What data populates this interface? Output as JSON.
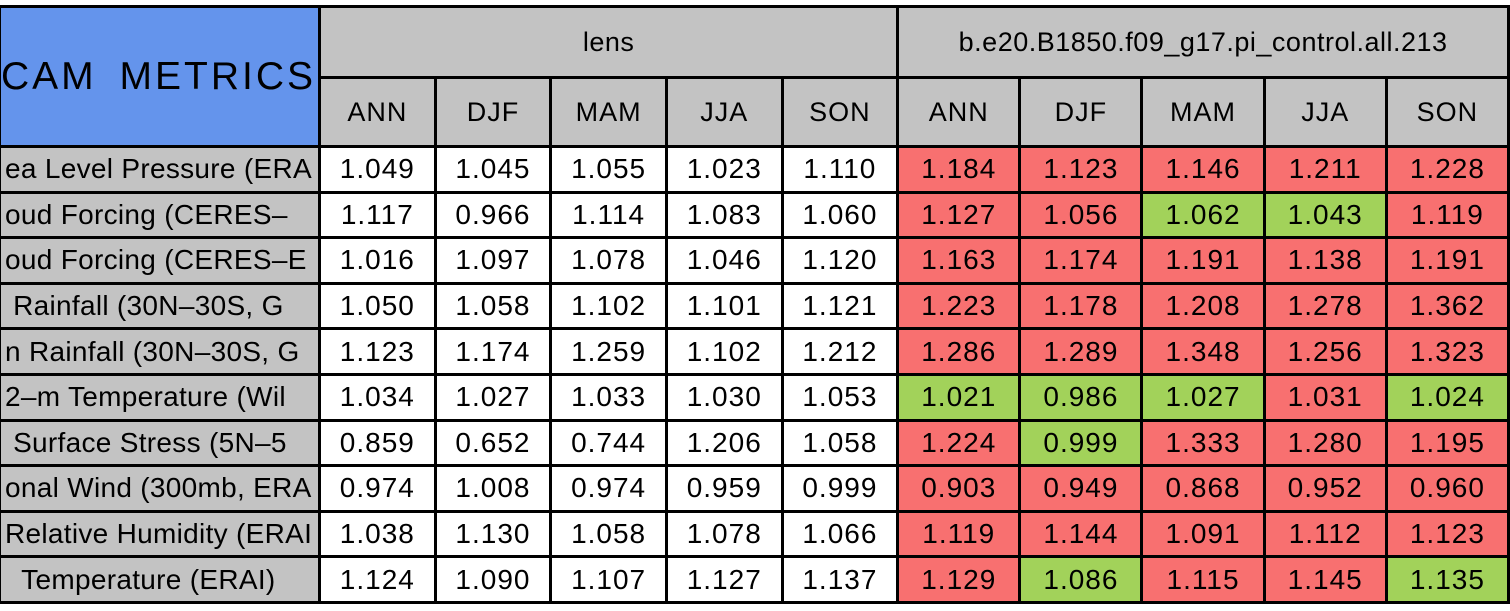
{
  "title": "CAM METRICS",
  "colors": {
    "page_bg": "#FFFFFF",
    "title_bg": "#6494EC",
    "header_bg": "#C3C3C3",
    "value_bg": "#FFFFFF",
    "worse_bg": "#F87070",
    "better_bg": "#A2D25A",
    "border": "#000000",
    "text": "#000000"
  },
  "chart_data": {
    "type": "table",
    "title": "CAM METRICS",
    "column_groups": [
      "lens",
      "b.e20.B1850.f09_g17.pi_control.all.213"
    ],
    "groups": [
      {
        "label": "lens",
        "seasons": [
          "ANN",
          "DJF",
          "MAM",
          "JJA",
          "SON"
        ]
      },
      {
        "label": "b.e20.B1850.f09_g17.pi_control.all.213",
        "seasons": [
          "ANN",
          "DJF",
          "MAM",
          "JJA",
          "SON"
        ]
      }
    ],
    "cell_color_legend": {
      "red": "#F87070",
      "green": "#A2D25A",
      "white": "#FFFFFF"
    },
    "rows": [
      {
        "label": "ea Level Pressure (ERA",
        "lens": [
          "1.049",
          "1.045",
          "1.055",
          "1.023",
          "1.110"
        ],
        "control": [
          "1.184",
          "1.123",
          "1.146",
          "1.211",
          "1.228"
        ],
        "control_colors": [
          "red",
          "red",
          "red",
          "red",
          "red"
        ]
      },
      {
        "label": "oud Forcing (CERES–",
        "lens": [
          "1.117",
          "0.966",
          "1.114",
          "1.083",
          "1.060"
        ],
        "control": [
          "1.127",
          "1.056",
          "1.062",
          "1.043",
          "1.119"
        ],
        "control_colors": [
          "red",
          "red",
          "green",
          "green",
          "red"
        ]
      },
      {
        "label": "oud Forcing (CERES–E",
        "lens": [
          "1.016",
          "1.097",
          "1.078",
          "1.046",
          "1.120"
        ],
        "control": [
          "1.163",
          "1.174",
          "1.191",
          "1.138",
          "1.191"
        ],
        "control_colors": [
          "red",
          "red",
          "red",
          "red",
          "red"
        ]
      },
      {
        "label": " Rainfall (30N–30S, G",
        "lens": [
          "1.050",
          "1.058",
          "1.102",
          "1.101",
          "1.121"
        ],
        "control": [
          "1.223",
          "1.178",
          "1.208",
          "1.278",
          "1.362"
        ],
        "control_colors": [
          "red",
          "red",
          "red",
          "red",
          "red"
        ]
      },
      {
        "label": "n Rainfall (30N–30S, G",
        "lens": [
          "1.123",
          "1.174",
          "1.259",
          "1.102",
          "1.212"
        ],
        "control": [
          "1.286",
          "1.289",
          "1.348",
          "1.256",
          "1.323"
        ],
        "control_colors": [
          "red",
          "red",
          "red",
          "red",
          "red"
        ]
      },
      {
        "label": "2–m Temperature (Wil",
        "lens": [
          "1.034",
          "1.027",
          "1.033",
          "1.030",
          "1.053"
        ],
        "control": [
          "1.021",
          "0.986",
          "1.027",
          "1.031",
          "1.024"
        ],
        "control_colors": [
          "green",
          "green",
          "green",
          "red",
          "green"
        ]
      },
      {
        "label": " Surface Stress (5N–5",
        "lens": [
          "0.859",
          "0.652",
          "0.744",
          "1.206",
          "1.058"
        ],
        "control": [
          "1.224",
          "0.999",
          "1.333",
          "1.280",
          "1.195"
        ],
        "control_colors": [
          "red",
          "green",
          "red",
          "red",
          "red"
        ]
      },
      {
        "label": "onal Wind (300mb, ERA",
        "lens": [
          "0.974",
          "1.008",
          "0.974",
          "0.959",
          "0.999"
        ],
        "control": [
          "0.903",
          "0.949",
          "0.868",
          "0.952",
          "0.960"
        ],
        "control_colors": [
          "red",
          "red",
          "red",
          "red",
          "red"
        ]
      },
      {
        "label": "Relative Humidity (ERAI",
        "lens": [
          "1.038",
          "1.130",
          "1.058",
          "1.078",
          "1.066"
        ],
        "control": [
          "1.119",
          "1.144",
          "1.091",
          "1.112",
          "1.123"
        ],
        "control_colors": [
          "red",
          "red",
          "red",
          "red",
          "red"
        ]
      },
      {
        "label": "  Temperature (ERAI)",
        "lens": [
          "1.124",
          "1.090",
          "1.107",
          "1.127",
          "1.137"
        ],
        "control": [
          "1.129",
          "1.086",
          "1.115",
          "1.145",
          "1.135"
        ],
        "control_colors": [
          "red",
          "green",
          "red",
          "red",
          "green"
        ]
      }
    ]
  }
}
